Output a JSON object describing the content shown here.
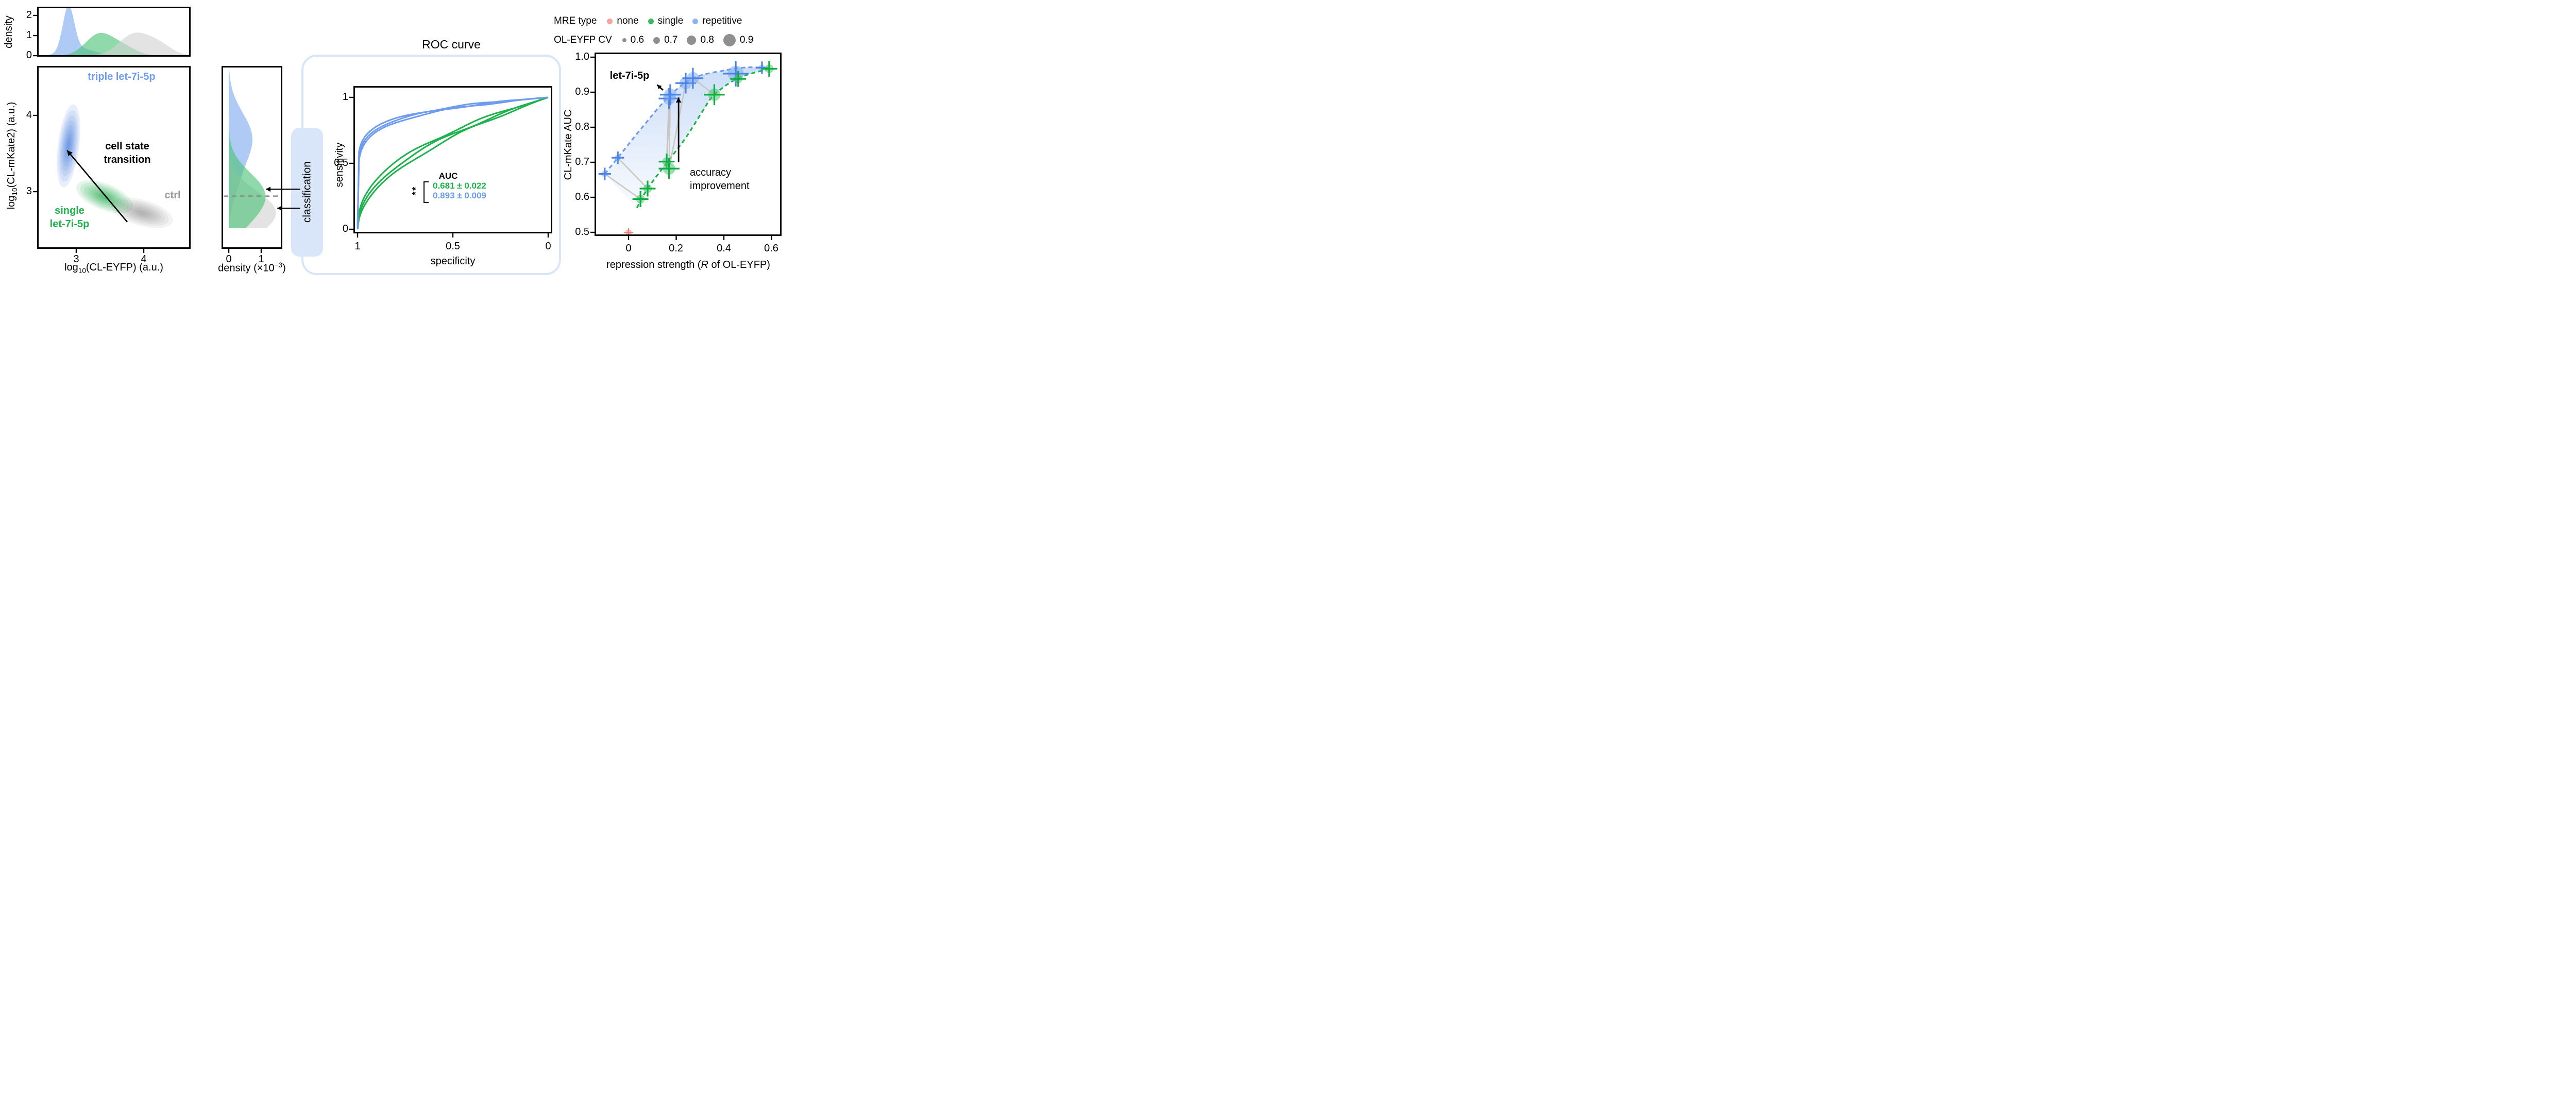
{
  "colors": {
    "blue_text": "#6f9bee",
    "blue_line": "#6f9bee",
    "blue_fill": "#7fa9f0",
    "blue_cross": "#4a84e8",
    "blue_deep": "#2f6fd8",
    "green_text": "#1db24c",
    "green_line": "#1db24c",
    "green_fill": "#4cc276",
    "green_cross": "#0fae3e",
    "green_deep": "#12a53f",
    "gray_fill": "#d2d2d2",
    "gray_deep": "#8f8f8f",
    "gray_text": "#9b9b9b",
    "pink_fill": "#f5a49e",
    "pink_cross": "#ee8478",
    "connector": "#c8c3bb",
    "band_top": "#c3d8f6",
    "band_bottom": "#f7fafe",
    "box_blue": "#d9e6f9",
    "dashed_gray": "#8a8a8a",
    "black": "#000000"
  },
  "ui": {
    "kde": {
      "ylabel_prefix": "log",
      "ylabel_sub": "10",
      "ylabel_rest": "(CL-mKate2) (a.u.)",
      "xlabel_prefix": "log",
      "xlabel_sub": "10",
      "xlabel_rest": "(CL-EYFP) (a.u.)"
    },
    "right_marginal": {
      "prefix": "density (×10",
      "sup": "−3",
      "suffix": ")"
    },
    "scatter": {
      "xlabel_pre": "repression strength (",
      "xlabel_italic": "R",
      "xlabel_post": " of OL-EYFP)"
    }
  },
  "classification_label": "classification",
  "chart_data": [
    {
      "id": "joint_kde",
      "type": "area",
      "xlabel": "log10(CL-EYFP) (a.u.)",
      "ylabel": "log10(CL-mKate2) (a.u.)",
      "xlim": [
        2.41,
        4.7
      ],
      "ylim": [
        2.25,
        4.65
      ],
      "xticks": [
        3,
        4
      ],
      "yticks": [
        3,
        4
      ],
      "xtick_labels": [
        "3",
        "4"
      ],
      "ytick_labels": [
        "4",
        "3"
      ],
      "labels": {
        "triple": "triple let-7i-5p",
        "transition_lines": [
          "cell state",
          "transition"
        ],
        "ctrl": "ctrl",
        "single_lines": [
          "single",
          "let-7i-5p"
        ]
      },
      "populations": [
        {
          "name": "triple let-7i-5p",
          "color": "#2f6fd8",
          "center": [
            2.88,
            3.6
          ],
          "rx": 0.16,
          "ry": 0.55,
          "rot_deg": 7
        },
        {
          "name": "single let-7i-5p",
          "color": "#12a53f",
          "center": [
            3.42,
            2.93
          ],
          "rx": 0.45,
          "ry": 0.17,
          "rot_deg": 22
        },
        {
          "name": "ctrl",
          "color": "#8f8f8f",
          "center": [
            3.98,
            2.72
          ],
          "rx": 0.48,
          "ry": 0.17,
          "rot_deg": 16
        }
      ],
      "transition_arrow": {
        "from": [
          3.76,
          2.6
        ],
        "to": [
          2.86,
          3.54
        ]
      },
      "top_marginal": {
        "ylabel": "density",
        "yticks": [
          0,
          1,
          2
        ],
        "ytick_labels": [
          "2",
          "1",
          "0"
        ],
        "curves": [
          {
            "name": "triple",
            "color_key": "blue",
            "components": [
              {
                "m": 2.88,
                "s": 0.085,
                "a": 2.25
              },
              {
                "m": 3.05,
                "s": 0.22,
                "a": 0.35
              }
            ]
          },
          {
            "name": "single",
            "color_key": "green",
            "components": [
              {
                "m": 3.33,
                "s": 0.2,
                "a": 1.02
              },
              {
                "m": 3.68,
                "s": 0.2,
                "a": 0.45
              }
            ]
          },
          {
            "name": "ctrl",
            "color_key": "gray",
            "components": [
              {
                "m": 3.85,
                "s": 0.22,
                "a": 1.02
              },
              {
                "m": 4.22,
                "s": 0.2,
                "a": 0.55
              }
            ]
          }
        ]
      },
      "right_marginal": {
        "xlabel": "density (×10−3)",
        "xticks": [
          0,
          1
        ],
        "xtick_labels": [
          "0",
          "1"
        ],
        "dashed_line_y": 2.94,
        "curves": [
          {
            "name": "triple",
            "color_key": "blue",
            "components": [
              {
                "m": 3.7,
                "s": 0.33,
                "a": 0.72
              },
              {
                "m": 3.1,
                "s": 0.25,
                "a": 0.18
              }
            ]
          },
          {
            "name": "single",
            "color_key": "green",
            "components": [
              {
                "m": 2.97,
                "s": 0.28,
                "a": 1.08
              },
              {
                "m": 2.6,
                "s": 0.2,
                "a": 0.25
              }
            ]
          },
          {
            "name": "ctrl",
            "color_key": "gray",
            "components": [
              {
                "m": 2.76,
                "s": 0.26,
                "a": 1.35
              },
              {
                "m": 2.45,
                "s": 0.2,
                "a": 0.3
              }
            ]
          }
        ],
        "peak_arrows": [
          {
            "at_y": 3.03,
            "reach": 1.05
          },
          {
            "at_y": 2.78,
            "reach": 1.4
          }
        ]
      }
    },
    {
      "id": "roc",
      "type": "line",
      "title": "ROC curve",
      "xlabel": "specificity",
      "ylabel": "sensitivity",
      "x_axis_reversed": true,
      "xticks": [
        1,
        0.5,
        0
      ],
      "yticks": [
        0,
        0.5,
        1
      ],
      "xtick_labels": [
        "1",
        "0.5",
        "0"
      ],
      "ytick_labels": [
        "1",
        "0.5",
        "0"
      ],
      "auc_title": "AUC",
      "significance": "**",
      "series": [
        {
          "name": "single let-7i-5p",
          "color_key": "green",
          "auc_mean": 0.681,
          "auc_sd": 0.022,
          "auc_label": "0.681 ± 0.022",
          "n_curves": 3
        },
        {
          "name": "triple let-7i-5p",
          "color_key": "blue",
          "auc_mean": 0.893,
          "auc_sd": 0.009,
          "auc_label": "0.893 ± 0.009",
          "n_curves": 3
        }
      ]
    },
    {
      "id": "auc_scatter",
      "type": "scatter",
      "xlabel": "repression strength (R of OL-EYFP)",
      "ylabel": "CL-mKate AUC",
      "xlim": [
        -0.143,
        0.643
      ],
      "ylim": [
        0.478,
        1.013
      ],
      "xticks": [
        0,
        0.2,
        0.4,
        0.6
      ],
      "yticks": [
        0.5,
        0.6,
        0.7,
        0.8,
        0.9,
        1.0
      ],
      "xtick_labels": [
        "0",
        "0.2",
        "0.4",
        "0.6"
      ],
      "ytick_labels": [
        "1.0",
        "0.9",
        "0.8",
        "0.7",
        "0.6",
        "0.5"
      ],
      "color_legend": {
        "label": "MRE type",
        "items": [
          {
            "label": "none",
            "color": "#f5a49e"
          },
          {
            "label": "single",
            "color": "#3dbb61"
          },
          {
            "label": "repetitive",
            "color": "#8ab4f3"
          }
        ]
      },
      "size_legend": {
        "label": "OL-EYFP CV",
        "values": [
          0.6,
          0.7,
          0.8,
          0.9
        ],
        "labels": [
          "0.6",
          "0.7",
          "0.8",
          "0.9"
        ]
      },
      "points": [
        {
          "id": "b1",
          "mre": "repetitive",
          "cv": 0.6,
          "x": -0.1,
          "y": 0.667
        },
        {
          "id": "b2",
          "mre": "repetitive",
          "cv": 0.6,
          "x": -0.045,
          "y": 0.713
        },
        {
          "id": "b3",
          "mre": "repetitive",
          "cv": 0.8,
          "x": 0.17,
          "y": 0.882
        },
        {
          "id": "b4",
          "mre": "repetitive",
          "cv": 0.8,
          "x": 0.175,
          "y": 0.893
        },
        {
          "id": "b5",
          "mre": "repetitive",
          "cv": 0.8,
          "x": 0.24,
          "y": 0.926
        },
        {
          "id": "b6",
          "mre": "repetitive",
          "cv": 0.8,
          "x": 0.27,
          "y": 0.94
        },
        {
          "id": "b7",
          "mre": "repetitive",
          "cv": 0.9,
          "x": 0.45,
          "y": 0.953
        },
        {
          "id": "b8",
          "mre": "repetitive",
          "cv": 0.6,
          "x": 0.56,
          "y": 0.97
        },
        {
          "id": "g1",
          "mre": "single",
          "cv": 0.7,
          "x": 0.05,
          "y": 0.595
        },
        {
          "id": "g2",
          "mre": "single",
          "cv": 0.7,
          "x": 0.08,
          "y": 0.625
        },
        {
          "id": "g3",
          "mre": "single",
          "cv": 0.7,
          "x": 0.16,
          "y": 0.702
        },
        {
          "id": "g4",
          "mre": "single",
          "cv": 0.8,
          "x": 0.17,
          "y": 0.682
        },
        {
          "id": "g5",
          "mre": "single",
          "cv": 0.8,
          "x": 0.36,
          "y": 0.893
        },
        {
          "id": "g6",
          "mre": "single",
          "cv": 0.7,
          "x": 0.46,
          "y": 0.938
        },
        {
          "id": "g7",
          "mre": "single",
          "cv": 0.7,
          "x": 0.59,
          "y": 0.967
        },
        {
          "id": "p1",
          "mre": "none",
          "cv": 0.6,
          "x": 0.0,
          "y": 0.5
        }
      ],
      "connectors": [
        [
          "g1",
          "b1"
        ],
        [
          "g2",
          "b2"
        ],
        [
          "g3",
          "b3"
        ],
        [
          "g3",
          "b4"
        ],
        [
          "g4",
          "b4"
        ],
        [
          "g4",
          "b5"
        ],
        [
          "g5",
          "b6"
        ],
        [
          "g6",
          "b7"
        ],
        [
          "g7",
          "b8"
        ]
      ],
      "envelopes": {
        "repetitive": [
          [
            -0.1,
            0.667
          ],
          [
            -0.045,
            0.713
          ],
          [
            0.06,
            0.802
          ],
          [
            0.17,
            0.888
          ],
          [
            0.27,
            0.94
          ],
          [
            0.4,
            0.962
          ],
          [
            0.5,
            0.971
          ],
          [
            0.59,
            0.968
          ]
        ],
        "single": [
          [
            0.035,
            0.57
          ],
          [
            0.08,
            0.625
          ],
          [
            0.16,
            0.698
          ],
          [
            0.24,
            0.77
          ],
          [
            0.31,
            0.845
          ],
          [
            0.36,
            0.893
          ],
          [
            0.46,
            0.94
          ],
          [
            0.59,
            0.967
          ]
        ]
      },
      "annotations": {
        "let7_label": "let-7i-5p",
        "let7_arrow": {
          "tail": [
            0.145,
            0.906
          ],
          "head": [
            0.12,
            0.921
          ]
        },
        "accuracy_lines": [
          "accuracy",
          "improvement"
        ],
        "improvement_arrow": {
          "from": [
            0.21,
            0.7
          ],
          "to": [
            0.21,
            0.885
          ]
        }
      }
    }
  ]
}
